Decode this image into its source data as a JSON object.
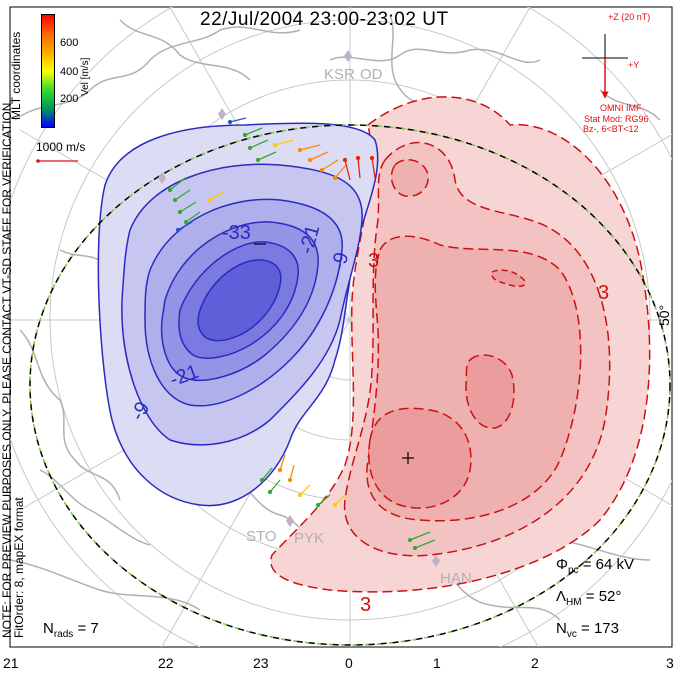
{
  "title": "22/Jul/2004 23:00-23:02 UT",
  "color_scale": {
    "label": "Vel [m/s]",
    "ticks": [
      "600",
      "400",
      "200"
    ],
    "colors": [
      "#ff0000",
      "#ff6600",
      "#ffaa00",
      "#ffff00",
      "#33dd33",
      "#009955",
      "#0000ff"
    ]
  },
  "coordinates_label": "MLT coordinates",
  "vector_scale": "1000 m/s",
  "imf": {
    "z_label": "+Z (20 nT)",
    "y_label": "+Y",
    "source": "OMNI IMF",
    "model": "Stat Mod: RG96",
    "condition": "Bz-, 6<BT<12"
  },
  "latitude_label": "50°",
  "notice": "NOTE: FOR PREVIEW PURPOSES ONLY. PLEASE CONTACT VT-SD STAFF FOR VERIFICATION.",
  "fit_info": "FitOrder: 8, mapEX format",
  "sites": [
    "KSR",
    "OD",
    "STO",
    "PYK",
    "HAN"
  ],
  "contour_labels": [
    "-33",
    "-21",
    "-9",
    "-21",
    "-9",
    "3",
    "3",
    "3"
  ],
  "stats": {
    "nrads": "7",
    "phi_pc": "64 kV",
    "lambda_hm": "52°",
    "nvc": "173"
  },
  "stat_labels": {
    "nrads_main": "N",
    "nrads_sub": "rads",
    "nrads_eq": "=",
    "phi_main": "Φ",
    "phi_sub": "pc",
    "phi_eq": "=",
    "lambda_main": "Λ",
    "lambda_sub": "HM",
    "lambda_eq": "=",
    "nvc_main": "N",
    "nvc_sub": "vc",
    "nvc_eq": "="
  },
  "mlt_ticks": [
    "21",
    "22",
    "23",
    "0",
    "1",
    "2",
    "3"
  ],
  "colors": {
    "negative": "#2b2bbf",
    "positive": "#cc1111",
    "neg_fill": "#5050e0",
    "pos_fill": "#f08080"
  }
}
